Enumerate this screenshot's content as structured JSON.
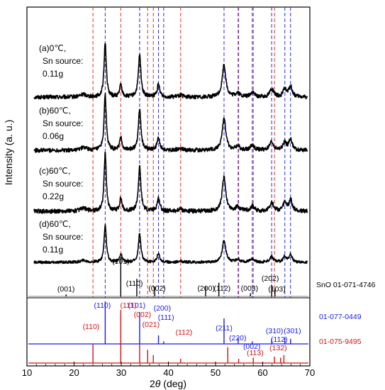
{
  "chart_data": {
    "type": "line",
    "xlabel_prefix": "2",
    "xlabel_theta": "θ",
    "xlabel_suffix": " (deg)",
    "ylabel": "Intensity (a. u.)",
    "xlim": [
      10,
      70
    ],
    "x_ticks": [
      "10",
      "20",
      "30",
      "40",
      "50",
      "60",
      "70"
    ],
    "baseline_peaks": [
      {
        "pos": 22.0,
        "height": 0.04,
        "width": 0.8
      },
      {
        "pos": 26.6,
        "height": 0.82,
        "width": 0.28
      },
      {
        "pos": 29.9,
        "height": 0.18,
        "width": 0.3
      },
      {
        "pos": 33.9,
        "height": 0.62,
        "width": 0.32
      },
      {
        "pos": 37.9,
        "height": 0.18,
        "width": 0.35
      },
      {
        "pos": 42.5,
        "height": 0.03,
        "width": 0.5
      },
      {
        "pos": 51.8,
        "height": 0.48,
        "width": 0.45
      },
      {
        "pos": 54.7,
        "height": 0.06,
        "width": 0.5
      },
      {
        "pos": 57.8,
        "height": 0.07,
        "width": 0.5
      },
      {
        "pos": 61.9,
        "height": 0.12,
        "width": 0.5
      },
      {
        "pos": 64.7,
        "height": 0.12,
        "width": 0.4
      },
      {
        "pos": 65.9,
        "height": 0.16,
        "width": 0.4
      }
    ],
    "samples": [
      {
        "line1": "(a)0℃,",
        "line2": "Sn source:",
        "line3": "0.11g"
      },
      {
        "line1": "(b)60℃,",
        "line2": "Sn source:",
        "line3": "0.06g"
      },
      {
        "line1": "(c)60℃,",
        "line2": "Sn source:",
        "line3": "0.22g"
      },
      {
        "line1": "(d)60℃,",
        "line2": "Sn source:",
        "line3": "0.11g"
      }
    ],
    "reference_lines": {
      "red_x": [
        24.0,
        29.9,
        33.9,
        35.6,
        36.8,
        42.6,
        54.9,
        58.0,
        62.5
      ],
      "blue_x": [
        26.6,
        33.9,
        37.9,
        39.0,
        51.8,
        54.8,
        57.8,
        61.9,
        64.7,
        65.9
      ]
    },
    "references": [
      {
        "name": "SnO  01-071-4746",
        "color": "#000000",
        "sticks": [
          {
            "x": 18.3,
            "h": 0.05
          },
          {
            "x": 29.9,
            "h": 1.0
          },
          {
            "x": 33.3,
            "h": 0.45
          },
          {
            "x": 37.1,
            "h": 0.25
          },
          {
            "x": 47.9,
            "h": 0.25
          },
          {
            "x": 50.7,
            "h": 0.35
          },
          {
            "x": 57.4,
            "h": 0.08
          },
          {
            "x": 61.9,
            "h": 0.3
          },
          {
            "x": 62.6,
            "h": 0.2
          }
        ],
        "labels": [
          {
            "text": "(001)",
            "x": 18.3
          },
          {
            "text": "(101)",
            "x": 29.9
          },
          {
            "text": "(110)",
            "x": 32.8
          },
          {
            "text": "(002)",
            "x": 37.6
          },
          {
            "text": "(200)",
            "x": 48.0
          },
          {
            "text": "(112)",
            "x": 51.4
          },
          {
            "text": "(003)",
            "x": 57.2
          },
          {
            "text": "(202)",
            "x": 61.6
          },
          {
            "text": "(103)",
            "x": 63.0
          }
        ]
      },
      {
        "name": "01-077-0449",
        "color": "#1a1af0",
        "sticks": [
          {
            "x": 26.6,
            "h": 1.0
          },
          {
            "x": 33.9,
            "h": 0.75
          },
          {
            "x": 37.9,
            "h": 0.2
          },
          {
            "x": 39.0,
            "h": 0.06
          },
          {
            "x": 51.8,
            "h": 0.6
          },
          {
            "x": 54.8,
            "h": 0.15
          },
          {
            "x": 57.8,
            "h": 0.06
          },
          {
            "x": 61.9,
            "h": 0.12
          },
          {
            "x": 64.7,
            "h": 0.15
          },
          {
            "x": 65.9,
            "h": 0.12
          }
        ],
        "labels": [
          {
            "text": "(110)",
            "x": 26.0
          },
          {
            "text": "(101)",
            "x": 33.3
          },
          {
            "text": "(200)",
            "x": 38.7
          },
          {
            "text": "(111)",
            "x": 39.5
          },
          {
            "text": "(211)",
            "x": 51.8
          },
          {
            "text": "(220)",
            "x": 54.7
          },
          {
            "text": "(002)",
            "x": 57.7
          },
          {
            "text": "(310)",
            "x": 62.5
          },
          {
            "text": "(112)",
            "x": 63.5
          },
          {
            "text": "(301)",
            "x": 66.3
          }
        ]
      },
      {
        "name": "01-075-9495",
        "color": "#d01414",
        "sticks": [
          {
            "x": 24.0,
            "h": 0.35
          },
          {
            "x": 29.9,
            "h": 1.0
          },
          {
            "x": 33.9,
            "h": 0.35
          },
          {
            "x": 35.6,
            "h": 0.25
          },
          {
            "x": 36.8,
            "h": 0.15
          },
          {
            "x": 42.6,
            "h": 0.08
          },
          {
            "x": 52.6,
            "h": 0.3
          },
          {
            "x": 54.9,
            "h": 0.08
          },
          {
            "x": 58.0,
            "h": 0.1
          },
          {
            "x": 62.5,
            "h": 0.12
          },
          {
            "x": 63.8,
            "h": 0.1
          },
          {
            "x": 64.5,
            "h": 0.15
          }
        ],
        "labels": [
          {
            "text": "(110)",
            "x": 23.6
          },
          {
            "text": "(111)",
            "x": 31.5
          },
          {
            "text": "(002)",
            "x": 34.5
          },
          {
            "text": "(021)",
            "x": 36.3
          },
          {
            "text": "(112)",
            "x": 43.3
          },
          {
            "text": "(113)",
            "x": 58.4
          },
          {
            "text": "(132)",
            "x": 63.3
          }
        ]
      }
    ]
  }
}
